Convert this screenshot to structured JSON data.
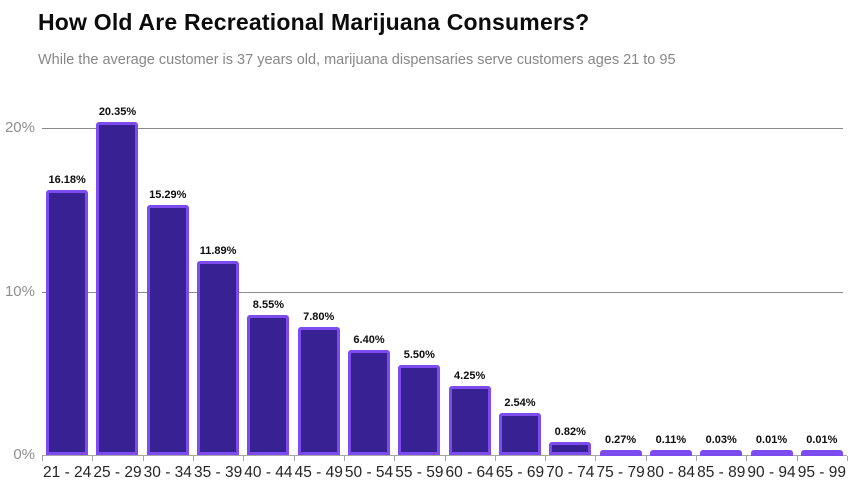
{
  "header": {
    "title": "How Old Are Recreational Marijuana Consumers?",
    "subtitle": "While the average customer is 37 years old, marijuana dispensaries serve customers ages 21 to 95"
  },
  "chart_data": {
    "type": "bar",
    "title": "How Old Are Recreational Marijuana Consumers?",
    "subtitle": "While the average customer is 37 years old, marijuana dispensaries serve customers ages 21 to 95",
    "categories": [
      "21 - 24",
      "25 - 29",
      "30 - 34",
      "35 - 39",
      "40 - 44",
      "45 - 49",
      "50 - 54",
      "55 - 59",
      "60 - 64",
      "65 - 69",
      "70 - 74",
      "75 - 79",
      "80 - 84",
      "85 - 89",
      "90 - 94",
      "95 - 99"
    ],
    "values": [
      16.18,
      20.35,
      15.29,
      11.89,
      8.55,
      7.8,
      6.4,
      5.5,
      4.25,
      2.54,
      0.82,
      0.27,
      0.11,
      0.03,
      0.01,
      0.01
    ],
    "value_labels": [
      "16.18%",
      "20.35%",
      "15.29%",
      "11.89%",
      "8.55%",
      "7.80%",
      "6.40%",
      "5.50%",
      "4.25%",
      "2.54%",
      "0.82%",
      "0.27%",
      "0.11%",
      "0.03%",
      "0.01%",
      "0.01%"
    ],
    "xlabel": "",
    "ylabel": "",
    "ylim": [
      0,
      22
    ],
    "yticks": [
      {
        "value": 0,
        "label": "0%"
      },
      {
        "value": 10,
        "label": "10%"
      },
      {
        "value": 20,
        "label": "20%"
      }
    ],
    "grid": "horizontal",
    "legend": "none",
    "colors": {
      "bar_fill": "#372193",
      "bar_border": "#7c4cf0",
      "gridline": "#8a8a8a",
      "axis_line": "#a6a6a6",
      "ytick_label": "#8f8f8f",
      "x_label": "#262626",
      "value_label": "#0d0d0d",
      "title": "#0c0c0c",
      "subtitle": "#878787"
    }
  }
}
